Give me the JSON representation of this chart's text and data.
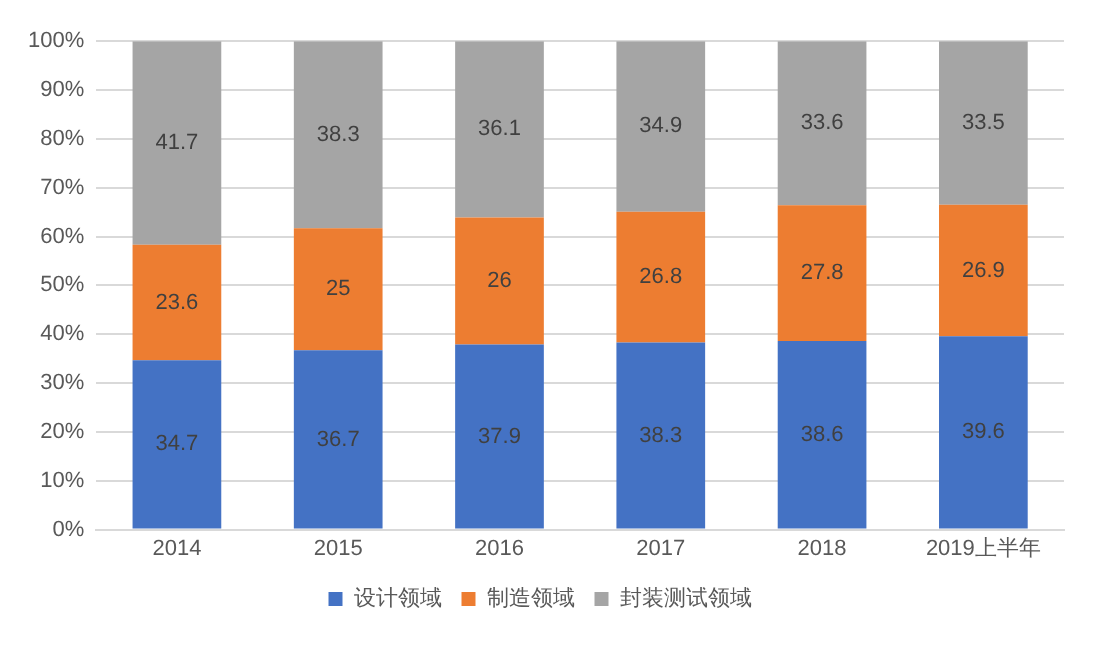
{
  "chart_data": {
    "type": "bar",
    "stacked": true,
    "categories": [
      "2014",
      "2015",
      "2016",
      "2017",
      "2018",
      "2019上半年"
    ],
    "series": [
      {
        "name": "设计领域",
        "color": "#4472c4",
        "values": [
          34.7,
          36.7,
          37.9,
          38.3,
          38.6,
          39.6
        ],
        "value_labels": [
          "34.7",
          "36.7",
          "37.9",
          "38.3",
          "38.6",
          "39.6"
        ]
      },
      {
        "name": "制造领域",
        "color": "#ed7d31",
        "values": [
          23.6,
          25,
          26,
          26.8,
          27.8,
          26.9
        ],
        "value_labels": [
          "23.6",
          "25",
          "26",
          "26.8",
          "27.8",
          "26.9"
        ]
      },
      {
        "name": "封装测试领域",
        "color": "#a5a5a5",
        "values": [
          41.7,
          38.3,
          36.1,
          34.9,
          33.6,
          33.5
        ],
        "value_labels": [
          "41.7",
          "38.3",
          "36.1",
          "34.9",
          "33.6",
          "33.5"
        ]
      }
    ],
    "ylim": [
      0,
      100
    ],
    "yticks": [
      {
        "value": 0,
        "label": "0%"
      },
      {
        "value": 10,
        "label": "10%"
      },
      {
        "value": 20,
        "label": "20%"
      },
      {
        "value": 30,
        "label": "30%"
      },
      {
        "value": 40,
        "label": "40%"
      },
      {
        "value": 50,
        "label": "50%"
      },
      {
        "value": 60,
        "label": "60%"
      },
      {
        "value": 70,
        "label": "70%"
      },
      {
        "value": 80,
        "label": "80%"
      },
      {
        "value": 90,
        "label": "90%"
      },
      {
        "value": 100,
        "label": "100%"
      }
    ],
    "grid": "y",
    "legend": "bottom"
  }
}
